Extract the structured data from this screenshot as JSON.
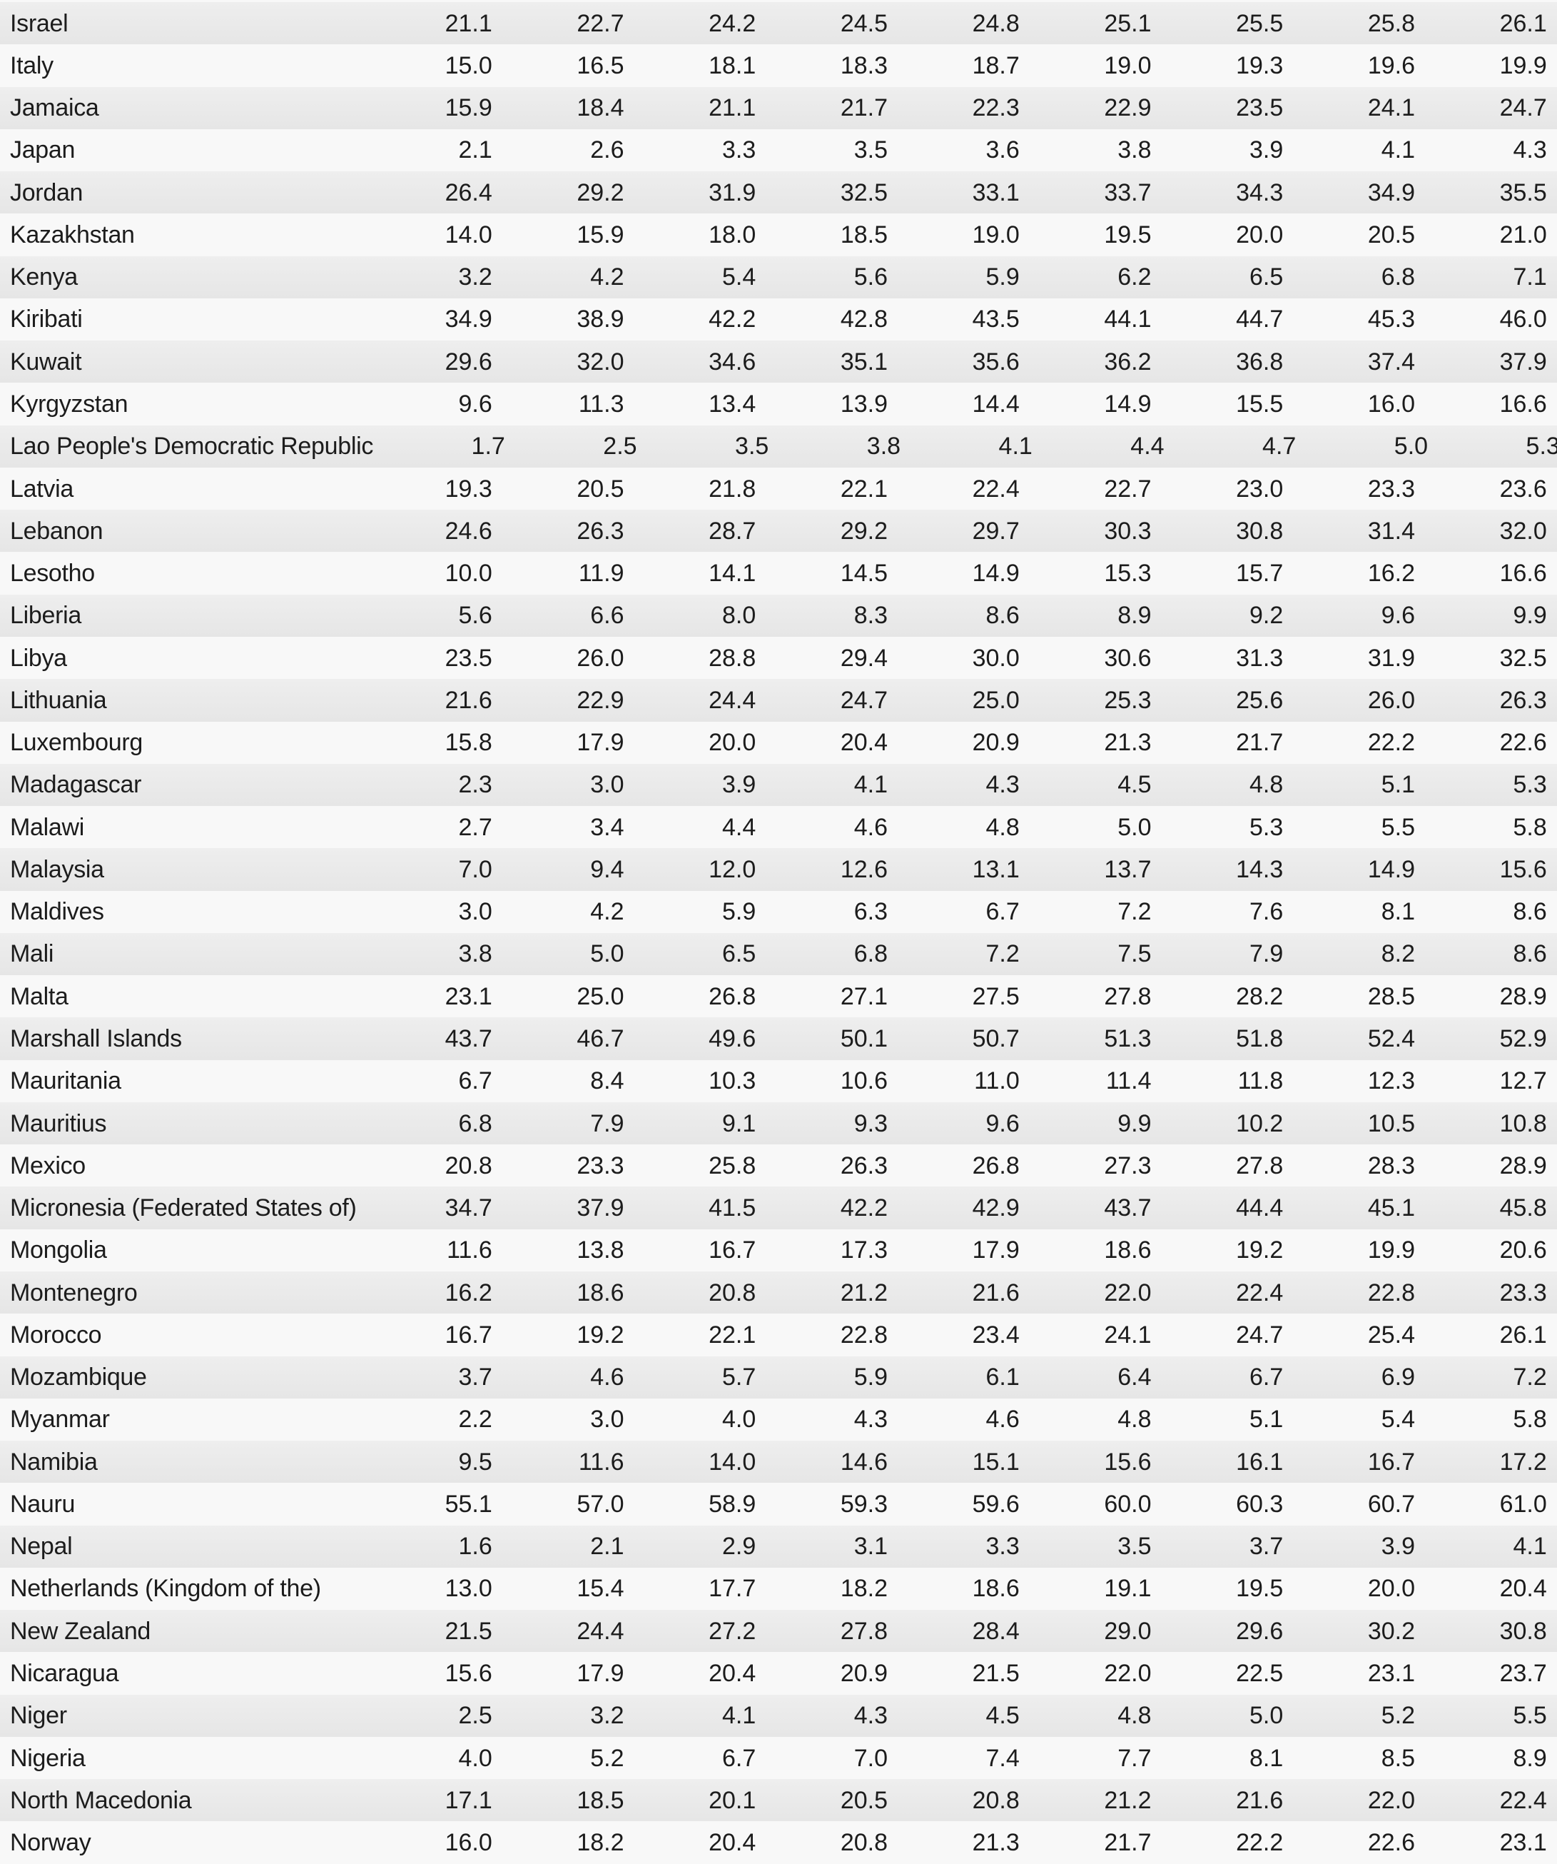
{
  "style": {
    "stripe_color_top": "#eeeeee",
    "stripe_color_bottom": "#e6e6e6",
    "row_background": "#f8f8f8",
    "text_color": "#1c1c1c"
  },
  "table": {
    "rows": [
      {
        "country": "Israel",
        "values": [
          "21.1",
          "22.7",
          "24.2",
          "24.5",
          "24.8",
          "25.1",
          "25.5",
          "25.8",
          "26.1"
        ]
      },
      {
        "country": "Italy",
        "values": [
          "15.0",
          "16.5",
          "18.1",
          "18.3",
          "18.7",
          "19.0",
          "19.3",
          "19.6",
          "19.9"
        ]
      },
      {
        "country": "Jamaica",
        "values": [
          "15.9",
          "18.4",
          "21.1",
          "21.7",
          "22.3",
          "22.9",
          "23.5",
          "24.1",
          "24.7"
        ]
      },
      {
        "country": "Japan",
        "values": [
          "2.1",
          "2.6",
          "3.3",
          "3.5",
          "3.6",
          "3.8",
          "3.9",
          "4.1",
          "4.3"
        ]
      },
      {
        "country": "Jordan",
        "values": [
          "26.4",
          "29.2",
          "31.9",
          "32.5",
          "33.1",
          "33.7",
          "34.3",
          "34.9",
          "35.5"
        ]
      },
      {
        "country": "Kazakhstan",
        "values": [
          "14.0",
          "15.9",
          "18.0",
          "18.5",
          "19.0",
          "19.5",
          "20.0",
          "20.5",
          "21.0"
        ]
      },
      {
        "country": "Kenya",
        "values": [
          "3.2",
          "4.2",
          "5.4",
          "5.6",
          "5.9",
          "6.2",
          "6.5",
          "6.8",
          "7.1"
        ]
      },
      {
        "country": "Kiribati",
        "values": [
          "34.9",
          "38.9",
          "42.2",
          "42.8",
          "43.5",
          "44.1",
          "44.7",
          "45.3",
          "46.0"
        ]
      },
      {
        "country": "Kuwait",
        "values": [
          "29.6",
          "32.0",
          "34.6",
          "35.1",
          "35.6",
          "36.2",
          "36.8",
          "37.4",
          "37.9"
        ]
      },
      {
        "country": "Kyrgyzstan",
        "values": [
          "9.6",
          "11.3",
          "13.4",
          "13.9",
          "14.4",
          "14.9",
          "15.5",
          "16.0",
          "16.6"
        ]
      },
      {
        "country": "Lao People's Democratic Republic",
        "values": [
          "1.7",
          "2.5",
          "3.5",
          "3.8",
          "4.1",
          "4.4",
          "4.7",
          "5.0",
          "5.3"
        ]
      },
      {
        "country": "Latvia",
        "values": [
          "19.3",
          "20.5",
          "21.8",
          "22.1",
          "22.4",
          "22.7",
          "23.0",
          "23.3",
          "23.6"
        ]
      },
      {
        "country": "Lebanon",
        "values": [
          "24.6",
          "26.3",
          "28.7",
          "29.2",
          "29.7",
          "30.3",
          "30.8",
          "31.4",
          "32.0"
        ]
      },
      {
        "country": "Lesotho",
        "values": [
          "10.0",
          "11.9",
          "14.1",
          "14.5",
          "14.9",
          "15.3",
          "15.7",
          "16.2",
          "16.6"
        ]
      },
      {
        "country": "Liberia",
        "values": [
          "5.6",
          "6.6",
          "8.0",
          "8.3",
          "8.6",
          "8.9",
          "9.2",
          "9.6",
          "9.9"
        ]
      },
      {
        "country": "Libya",
        "values": [
          "23.5",
          "26.0",
          "28.8",
          "29.4",
          "30.0",
          "30.6",
          "31.3",
          "31.9",
          "32.5"
        ]
      },
      {
        "country": "Lithuania",
        "values": [
          "21.6",
          "22.9",
          "24.4",
          "24.7",
          "25.0",
          "25.3",
          "25.6",
          "26.0",
          "26.3"
        ]
      },
      {
        "country": "Luxembourg",
        "values": [
          "15.8",
          "17.9",
          "20.0",
          "20.4",
          "20.9",
          "21.3",
          "21.7",
          "22.2",
          "22.6"
        ]
      },
      {
        "country": "Madagascar",
        "values": [
          "2.3",
          "3.0",
          "3.9",
          "4.1",
          "4.3",
          "4.5",
          "4.8",
          "5.1",
          "5.3"
        ]
      },
      {
        "country": "Malawi",
        "values": [
          "2.7",
          "3.4",
          "4.4",
          "4.6",
          "4.8",
          "5.0",
          "5.3",
          "5.5",
          "5.8"
        ]
      },
      {
        "country": "Malaysia",
        "values": [
          "7.0",
          "9.4",
          "12.0",
          "12.6",
          "13.1",
          "13.7",
          "14.3",
          "14.9",
          "15.6"
        ]
      },
      {
        "country": "Maldives",
        "values": [
          "3.0",
          "4.2",
          "5.9",
          "6.3",
          "6.7",
          "7.2",
          "7.6",
          "8.1",
          "8.6"
        ]
      },
      {
        "country": "Mali",
        "values": [
          "3.8",
          "5.0",
          "6.5",
          "6.8",
          "7.2",
          "7.5",
          "7.9",
          "8.2",
          "8.6"
        ]
      },
      {
        "country": "Malta",
        "values": [
          "23.1",
          "25.0",
          "26.8",
          "27.1",
          "27.5",
          "27.8",
          "28.2",
          "28.5",
          "28.9"
        ]
      },
      {
        "country": "Marshall Islands",
        "values": [
          "43.7",
          "46.7",
          "49.6",
          "50.1",
          "50.7",
          "51.3",
          "51.8",
          "52.4",
          "52.9"
        ]
      },
      {
        "country": "Mauritania",
        "values": [
          "6.7",
          "8.4",
          "10.3",
          "10.6",
          "11.0",
          "11.4",
          "11.8",
          "12.3",
          "12.7"
        ]
      },
      {
        "country": "Mauritius",
        "values": [
          "6.8",
          "7.9",
          "9.1",
          "9.3",
          "9.6",
          "9.9",
          "10.2",
          "10.5",
          "10.8"
        ]
      },
      {
        "country": "Mexico",
        "values": [
          "20.8",
          "23.3",
          "25.8",
          "26.3",
          "26.8",
          "27.3",
          "27.8",
          "28.3",
          "28.9"
        ]
      },
      {
        "country": "Micronesia (Federated States of)",
        "values": [
          "34.7",
          "37.9",
          "41.5",
          "42.2",
          "42.9",
          "43.7",
          "44.4",
          "45.1",
          "45.8"
        ]
      },
      {
        "country": "Mongolia",
        "values": [
          "11.6",
          "13.8",
          "16.7",
          "17.3",
          "17.9",
          "18.6",
          "19.2",
          "19.9",
          "20.6"
        ]
      },
      {
        "country": "Montenegro",
        "values": [
          "16.2",
          "18.6",
          "20.8",
          "21.2",
          "21.6",
          "22.0",
          "22.4",
          "22.8",
          "23.3"
        ]
      },
      {
        "country": "Morocco",
        "values": [
          "16.7",
          "19.2",
          "22.1",
          "22.8",
          "23.4",
          "24.1",
          "24.7",
          "25.4",
          "26.1"
        ]
      },
      {
        "country": "Mozambique",
        "values": [
          "3.7",
          "4.6",
          "5.7",
          "5.9",
          "6.1",
          "6.4",
          "6.7",
          "6.9",
          "7.2"
        ]
      },
      {
        "country": "Myanmar",
        "values": [
          "2.2",
          "3.0",
          "4.0",
          "4.3",
          "4.6",
          "4.8",
          "5.1",
          "5.4",
          "5.8"
        ]
      },
      {
        "country": "Namibia",
        "values": [
          "9.5",
          "11.6",
          "14.0",
          "14.6",
          "15.1",
          "15.6",
          "16.1",
          "16.7",
          "17.2"
        ]
      },
      {
        "country": "Nauru",
        "values": [
          "55.1",
          "57.0",
          "58.9",
          "59.3",
          "59.6",
          "60.0",
          "60.3",
          "60.7",
          "61.0"
        ]
      },
      {
        "country": "Nepal",
        "values": [
          "1.6",
          "2.1",
          "2.9",
          "3.1",
          "3.3",
          "3.5",
          "3.7",
          "3.9",
          "4.1"
        ]
      },
      {
        "country": "Netherlands (Kingdom of the)",
        "values": [
          "13.0",
          "15.4",
          "17.7",
          "18.2",
          "18.6",
          "19.1",
          "19.5",
          "20.0",
          "20.4"
        ]
      },
      {
        "country": "New Zealand",
        "values": [
          "21.5",
          "24.4",
          "27.2",
          "27.8",
          "28.4",
          "29.0",
          "29.6",
          "30.2",
          "30.8"
        ]
      },
      {
        "country": "Nicaragua",
        "values": [
          "15.6",
          "17.9",
          "20.4",
          "20.9",
          "21.5",
          "22.0",
          "22.5",
          "23.1",
          "23.7"
        ]
      },
      {
        "country": "Niger",
        "values": [
          "2.5",
          "3.2",
          "4.1",
          "4.3",
          "4.5",
          "4.8",
          "5.0",
          "5.2",
          "5.5"
        ]
      },
      {
        "country": "Nigeria",
        "values": [
          "4.0",
          "5.2",
          "6.7",
          "7.0",
          "7.4",
          "7.7",
          "8.1",
          "8.5",
          "8.9"
        ]
      },
      {
        "country": "North Macedonia",
        "values": [
          "17.1",
          "18.5",
          "20.1",
          "20.5",
          "20.8",
          "21.2",
          "21.6",
          "22.0",
          "22.4"
        ]
      },
      {
        "country": "Norway",
        "values": [
          "16.0",
          "18.2",
          "20.4",
          "20.8",
          "21.3",
          "21.7",
          "22.2",
          "22.6",
          "23.1"
        ]
      }
    ]
  }
}
